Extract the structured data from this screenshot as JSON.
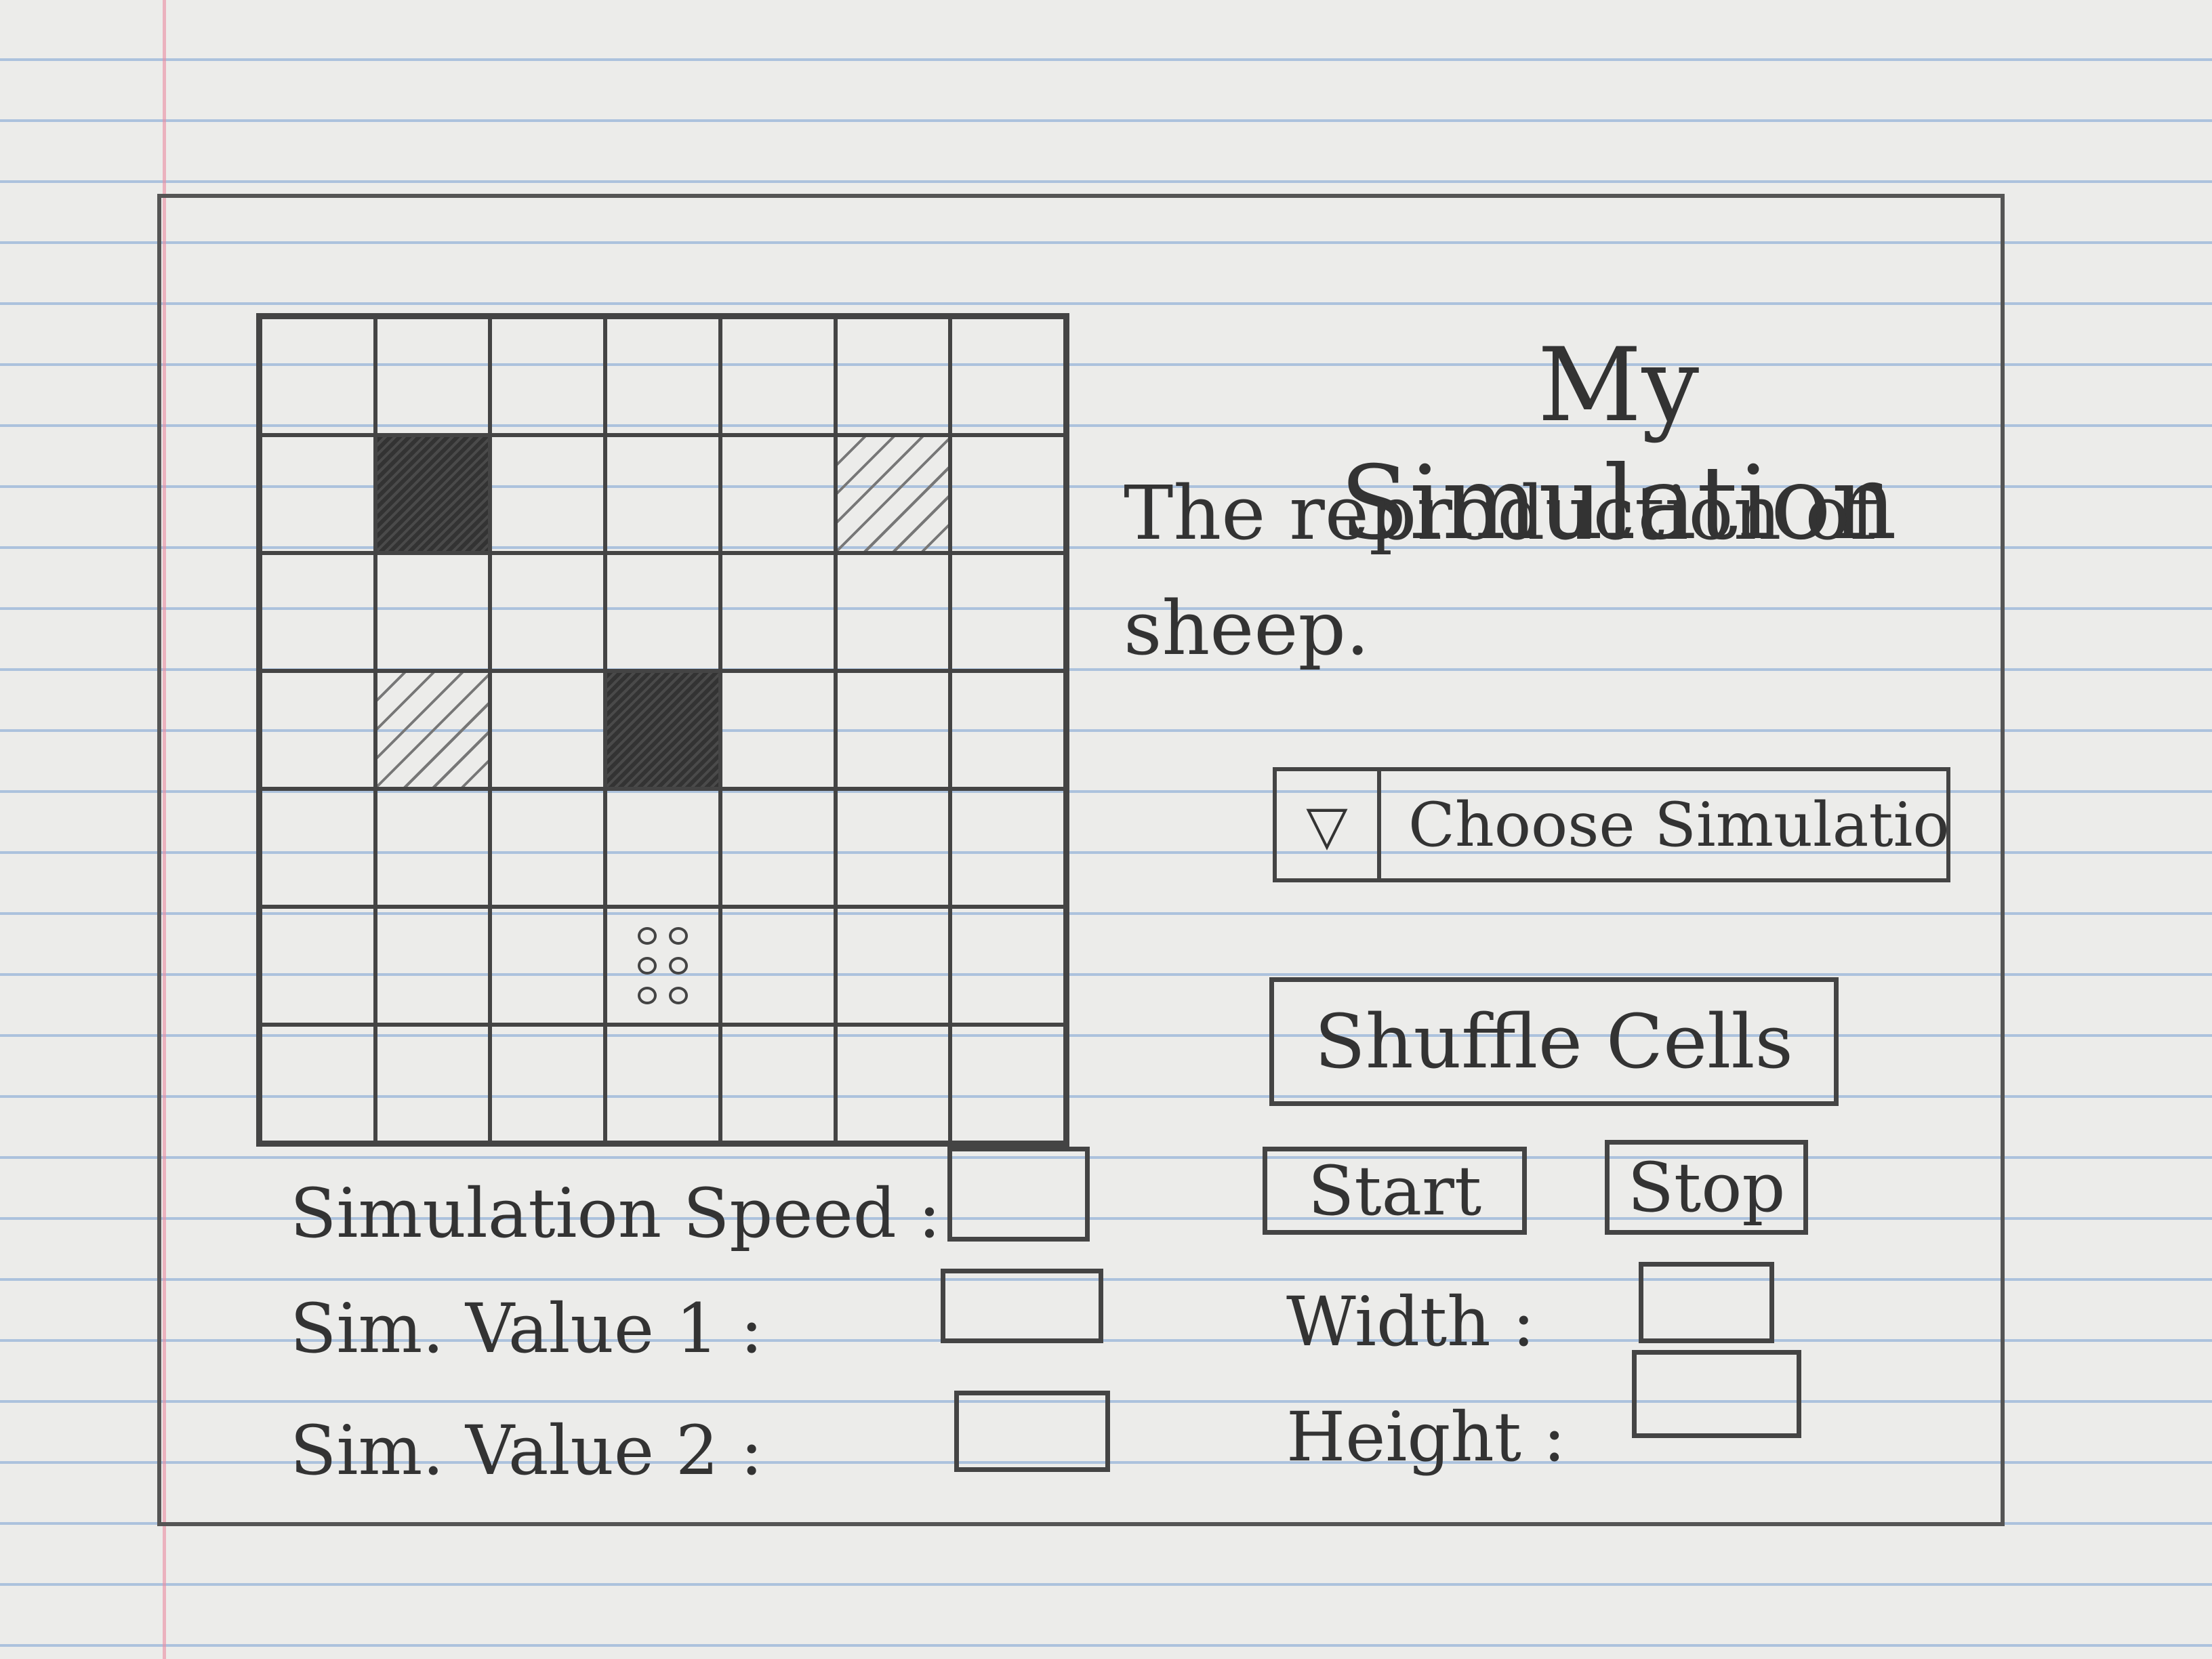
{
  "window": {
    "title": "My Simulation",
    "description": "The reproduction of sheep."
  },
  "grid": {
    "columns": 7,
    "rows": 7,
    "cells": [
      {
        "row": 1,
        "col": 1,
        "state": "dark"
      },
      {
        "row": 1,
        "col": 5,
        "state": "hatched"
      },
      {
        "row": 3,
        "col": 1,
        "state": "hatched"
      },
      {
        "row": 3,
        "col": 3,
        "state": "dark"
      },
      {
        "row": 5,
        "col": 3,
        "state": "dotted"
      }
    ]
  },
  "controls": {
    "dropdown_icon": "▽",
    "dropdown_label": "Choose Simulation",
    "shuffle_label": "Shuffle Cells",
    "start_label": "Start",
    "stop_label": "Stop",
    "speed_label": "Simulation Speed :",
    "value1_label": "Sim. Value 1 :",
    "value2_label": "Sim. Value 2 :",
    "width_label": "Width :",
    "height_label": "Height :"
  }
}
